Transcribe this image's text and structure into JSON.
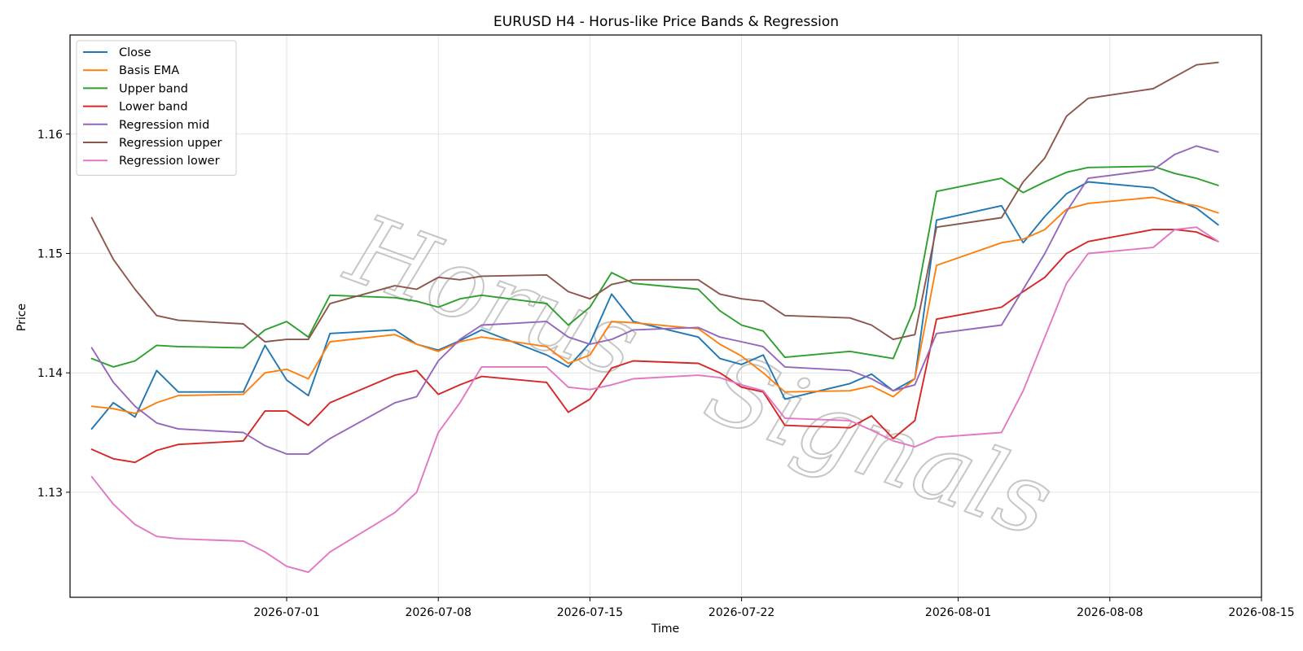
{
  "chart_data": {
    "type": "line",
    "title": "EURUSD H4 - Horus-like Price Bands & Regression",
    "xlabel": "Time",
    "ylabel": "Price",
    "xlim": [
      "2026-06-21",
      "2026-08-15"
    ],
    "ylim": [
      1.1212,
      1.1683
    ],
    "grid": true,
    "legend_position": "upper-left",
    "x_ticks": [
      "2026-07-01",
      "2026-07-08",
      "2026-07-15",
      "2026-07-22",
      "2026-08-01",
      "2026-08-08",
      "2026-08-15"
    ],
    "y_ticks": [
      1.13,
      1.14,
      1.15,
      1.16
    ],
    "watermark": "Horus Signals",
    "series": [
      {
        "name": "Close",
        "color": "#1f77b4",
        "x": [
          "2026-06-22",
          "2026-06-23",
          "2026-06-24",
          "2026-06-25",
          "2026-06-26",
          "2026-06-29",
          "2026-06-30",
          "2026-07-01",
          "2026-07-02",
          "2026-07-03",
          "2026-07-06",
          "2026-07-07",
          "2026-07-08",
          "2026-07-09",
          "2026-07-10",
          "2026-07-13",
          "2026-07-14",
          "2026-07-15",
          "2026-07-16",
          "2026-07-17",
          "2026-07-20",
          "2026-07-21",
          "2026-07-22",
          "2026-07-23",
          "2026-07-24",
          "2026-07-27",
          "2026-07-28",
          "2026-07-29",
          "2026-07-30",
          "2026-07-31",
          "2026-08-03",
          "2026-08-04",
          "2026-08-05",
          "2026-08-06",
          "2026-08-07",
          "2026-08-10",
          "2026-08-11",
          "2026-08-12",
          "2026-08-13"
        ],
        "y": [
          1.1353,
          1.1375,
          1.1363,
          1.1402,
          1.1384,
          1.1384,
          1.1423,
          1.1394,
          1.1381,
          1.1433,
          1.1436,
          1.1424,
          1.1419,
          1.1427,
          1.1436,
          1.1415,
          1.1405,
          1.1425,
          1.1466,
          1.1443,
          1.143,
          1.1412,
          1.1407,
          1.1415,
          1.1378,
          1.1391,
          1.1399,
          1.1385,
          1.1395,
          1.1528,
          1.154,
          1.1509,
          1.1531,
          1.155,
          1.156,
          1.1555,
          1.1545,
          1.1538,
          1.1524
        ]
      },
      {
        "name": "Basis EMA",
        "color": "#ff7f0e",
        "x": [
          "2026-06-22",
          "2026-06-23",
          "2026-06-24",
          "2026-06-25",
          "2026-06-26",
          "2026-06-29",
          "2026-06-30",
          "2026-07-01",
          "2026-07-02",
          "2026-07-03",
          "2026-07-06",
          "2026-07-07",
          "2026-07-08",
          "2026-07-09",
          "2026-07-10",
          "2026-07-13",
          "2026-07-14",
          "2026-07-15",
          "2026-07-16",
          "2026-07-17",
          "2026-07-20",
          "2026-07-21",
          "2026-07-22",
          "2026-07-23",
          "2026-07-24",
          "2026-07-27",
          "2026-07-28",
          "2026-07-29",
          "2026-07-30",
          "2026-07-31",
          "2026-08-03",
          "2026-08-04",
          "2026-08-05",
          "2026-08-06",
          "2026-08-07",
          "2026-08-10",
          "2026-08-11",
          "2026-08-12",
          "2026-08-13"
        ],
        "y": [
          1.1372,
          1.137,
          1.1366,
          1.1375,
          1.1381,
          1.1382,
          1.14,
          1.1403,
          1.1395,
          1.1426,
          1.1432,
          1.1424,
          1.1418,
          1.1426,
          1.143,
          1.1422,
          1.1408,
          1.1415,
          1.1443,
          1.1442,
          1.1437,
          1.1424,
          1.1414,
          1.14,
          1.1384,
          1.1385,
          1.1389,
          1.138,
          1.1395,
          1.149,
          1.1509,
          1.1512,
          1.152,
          1.1537,
          1.1542,
          1.1547,
          1.1543,
          1.154,
          1.1534
        ]
      },
      {
        "name": "Upper band",
        "color": "#2ca02c",
        "x": [
          "2026-06-22",
          "2026-06-23",
          "2026-06-24",
          "2026-06-25",
          "2026-06-26",
          "2026-06-29",
          "2026-06-30",
          "2026-07-01",
          "2026-07-02",
          "2026-07-03",
          "2026-07-06",
          "2026-07-07",
          "2026-07-08",
          "2026-07-09",
          "2026-07-10",
          "2026-07-13",
          "2026-07-14",
          "2026-07-15",
          "2026-07-16",
          "2026-07-17",
          "2026-07-20",
          "2026-07-21",
          "2026-07-22",
          "2026-07-23",
          "2026-07-24",
          "2026-07-27",
          "2026-07-28",
          "2026-07-29",
          "2026-07-30",
          "2026-07-31",
          "2026-08-03",
          "2026-08-04",
          "2026-08-05",
          "2026-08-06",
          "2026-08-07",
          "2026-08-10",
          "2026-08-11",
          "2026-08-12",
          "2026-08-13"
        ],
        "y": [
          1.1412,
          1.1405,
          1.141,
          1.1423,
          1.1422,
          1.1421,
          1.1436,
          1.1443,
          1.143,
          1.1465,
          1.1463,
          1.146,
          1.1455,
          1.1462,
          1.1465,
          1.1458,
          1.144,
          1.1455,
          1.1484,
          1.1475,
          1.147,
          1.1452,
          1.144,
          1.1435,
          1.1413,
          1.1418,
          1.1415,
          1.1412,
          1.1455,
          1.1552,
          1.1563,
          1.1551,
          1.156,
          1.1568,
          1.1572,
          1.1573,
          1.1567,
          1.1563,
          1.1557
        ]
      },
      {
        "name": "Lower band",
        "color": "#d62728",
        "x": [
          "2026-06-22",
          "2026-06-23",
          "2026-06-24",
          "2026-06-25",
          "2026-06-26",
          "2026-06-29",
          "2026-06-30",
          "2026-07-01",
          "2026-07-02",
          "2026-07-03",
          "2026-07-06",
          "2026-07-07",
          "2026-07-08",
          "2026-07-09",
          "2026-07-10",
          "2026-07-13",
          "2026-07-14",
          "2026-07-15",
          "2026-07-16",
          "2026-07-17",
          "2026-07-20",
          "2026-07-21",
          "2026-07-22",
          "2026-07-23",
          "2026-07-24",
          "2026-07-27",
          "2026-07-28",
          "2026-07-29",
          "2026-07-30",
          "2026-07-31",
          "2026-08-03",
          "2026-08-04",
          "2026-08-05",
          "2026-08-06",
          "2026-08-07",
          "2026-08-10",
          "2026-08-11",
          "2026-08-12",
          "2026-08-13"
        ],
        "y": [
          1.1336,
          1.1328,
          1.1325,
          1.1335,
          1.134,
          1.1343,
          1.1368,
          1.1368,
          1.1356,
          1.1375,
          1.1398,
          1.1402,
          1.1382,
          1.139,
          1.1397,
          1.1392,
          1.1367,
          1.1378,
          1.1404,
          1.141,
          1.1408,
          1.14,
          1.1388,
          1.1384,
          1.1356,
          1.1354,
          1.1364,
          1.1345,
          1.136,
          1.1445,
          1.1455,
          1.1468,
          1.148,
          1.15,
          1.151,
          1.152,
          1.152,
          1.1518,
          1.151
        ]
      },
      {
        "name": "Regression mid",
        "color": "#9467bd",
        "x": [
          "2026-06-22",
          "2026-06-23",
          "2026-06-24",
          "2026-06-25",
          "2026-06-26",
          "2026-06-29",
          "2026-06-30",
          "2026-07-01",
          "2026-07-02",
          "2026-07-03",
          "2026-07-06",
          "2026-07-07",
          "2026-07-08",
          "2026-07-09",
          "2026-07-10",
          "2026-07-13",
          "2026-07-14",
          "2026-07-15",
          "2026-07-16",
          "2026-07-17",
          "2026-07-20",
          "2026-07-21",
          "2026-07-22",
          "2026-07-23",
          "2026-07-24",
          "2026-07-27",
          "2026-07-28",
          "2026-07-29",
          "2026-07-30",
          "2026-07-31",
          "2026-08-03",
          "2026-08-04",
          "2026-08-05",
          "2026-08-06",
          "2026-08-07",
          "2026-08-10",
          "2026-08-11",
          "2026-08-12",
          "2026-08-13"
        ],
        "y": [
          1.1421,
          1.1392,
          1.1372,
          1.1358,
          1.1353,
          1.135,
          1.1339,
          1.1332,
          1.1332,
          1.1345,
          1.1375,
          1.138,
          1.141,
          1.1428,
          1.144,
          1.1443,
          1.143,
          1.1424,
          1.1428,
          1.1436,
          1.1438,
          1.143,
          1.1426,
          1.1422,
          1.1405,
          1.1402,
          1.1395,
          1.1385,
          1.139,
          1.1433,
          1.144,
          1.147,
          1.15,
          1.1535,
          1.1563,
          1.157,
          1.1583,
          1.159,
          1.1585
        ]
      },
      {
        "name": "Regression upper",
        "color": "#8c564b",
        "x": [
          "2026-06-22",
          "2026-06-23",
          "2026-06-24",
          "2026-06-25",
          "2026-06-26",
          "2026-06-29",
          "2026-06-30",
          "2026-07-01",
          "2026-07-02",
          "2026-07-03",
          "2026-07-06",
          "2026-07-07",
          "2026-07-08",
          "2026-07-09",
          "2026-07-10",
          "2026-07-13",
          "2026-07-14",
          "2026-07-15",
          "2026-07-16",
          "2026-07-17",
          "2026-07-20",
          "2026-07-21",
          "2026-07-22",
          "2026-07-23",
          "2026-07-24",
          "2026-07-27",
          "2026-07-28",
          "2026-07-29",
          "2026-07-30",
          "2026-07-31",
          "2026-08-03",
          "2026-08-04",
          "2026-08-05",
          "2026-08-06",
          "2026-08-07",
          "2026-08-10",
          "2026-08-11",
          "2026-08-12",
          "2026-08-13"
        ],
        "y": [
          1.153,
          1.1495,
          1.147,
          1.1448,
          1.1444,
          1.1441,
          1.1426,
          1.1428,
          1.1428,
          1.1458,
          1.1473,
          1.147,
          1.148,
          1.1478,
          1.1481,
          1.1482,
          1.1468,
          1.1462,
          1.1474,
          1.1478,
          1.1478,
          1.1466,
          1.1462,
          1.146,
          1.1448,
          1.1446,
          1.144,
          1.1428,
          1.1432,
          1.1522,
          1.153,
          1.156,
          1.158,
          1.1615,
          1.163,
          1.1638,
          1.1648,
          1.1658,
          1.166
        ]
      },
      {
        "name": "Regression lower",
        "color": "#e377c2",
        "x": [
          "2026-06-22",
          "2026-06-23",
          "2026-06-24",
          "2026-06-25",
          "2026-06-26",
          "2026-06-29",
          "2026-06-30",
          "2026-07-01",
          "2026-07-02",
          "2026-07-03",
          "2026-07-06",
          "2026-07-07",
          "2026-07-08",
          "2026-07-09",
          "2026-07-10",
          "2026-07-13",
          "2026-07-14",
          "2026-07-15",
          "2026-07-16",
          "2026-07-17",
          "2026-07-20",
          "2026-07-21",
          "2026-07-22",
          "2026-07-23",
          "2026-07-24",
          "2026-07-27",
          "2026-07-28",
          "2026-07-29",
          "2026-07-30",
          "2026-07-31",
          "2026-08-03",
          "2026-08-04",
          "2026-08-05",
          "2026-08-06",
          "2026-08-07",
          "2026-08-10",
          "2026-08-11",
          "2026-08-12",
          "2026-08-13"
        ],
        "y": [
          1.1313,
          1.129,
          1.1273,
          1.1263,
          1.1261,
          1.1259,
          1.125,
          1.1238,
          1.1233,
          1.125,
          1.1283,
          1.13,
          1.135,
          1.1375,
          1.1405,
          1.1405,
          1.1388,
          1.1386,
          1.139,
          1.1395,
          1.1398,
          1.1396,
          1.139,
          1.1385,
          1.1362,
          1.136,
          1.1352,
          1.1343,
          1.1338,
          1.1346,
          1.135,
          1.1385,
          1.143,
          1.1475,
          1.15,
          1.1505,
          1.152,
          1.1522,
          1.151
        ]
      }
    ]
  }
}
